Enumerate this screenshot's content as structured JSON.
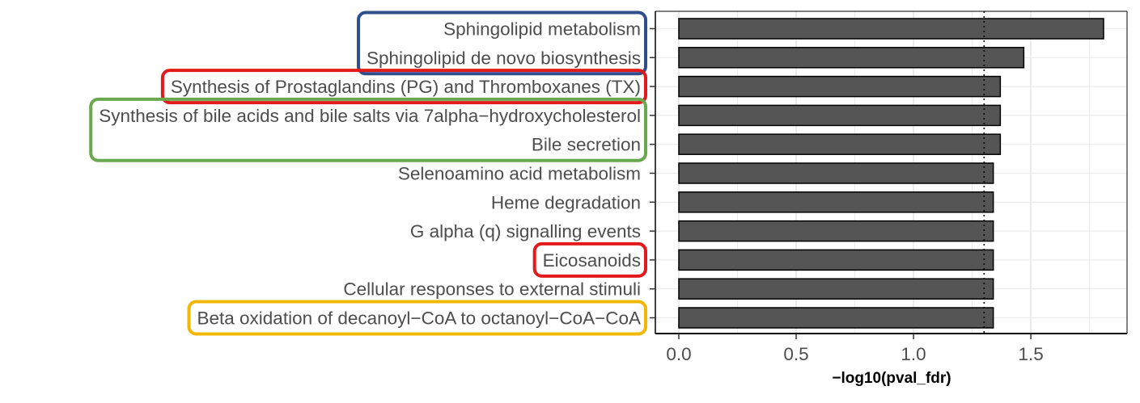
{
  "chart_data": {
    "type": "bar",
    "orientation": "horizontal",
    "categories": [
      "Sphingolipid metabolism",
      "Sphingolipid de novo biosynthesis",
      "Synthesis of Prostaglandins (PG) and Thromboxanes (TX)",
      "Synthesis of bile acids and bile salts via 7alpha−hydroxycholesterol",
      "Bile secretion",
      "Selenoamino acid metabolism",
      "Heme degradation",
      "G alpha (q) signalling events",
      "Eicosanoids",
      "Cellular responses to external stimuli",
      "Beta oxidation of decanoyl−CoA to octanoyl−CoA−CoA"
    ],
    "values": [
      1.81,
      1.47,
      1.37,
      1.37,
      1.37,
      1.34,
      1.34,
      1.34,
      1.34,
      1.34,
      1.34
    ],
    "xlabel": "−log10(pval_fdr)",
    "ylabel": "",
    "xlim": [
      -0.1,
      1.91
    ],
    "xticks": [
      0.0,
      0.5,
      1.0,
      1.5
    ],
    "xtick_labels": [
      "0.0",
      "0.5",
      "1.0",
      "1.5"
    ],
    "reference_line": {
      "value": 1.301,
      "style": "dotted",
      "color": "#000000"
    },
    "bar_color": "#555555",
    "bar_outline": "#000000",
    "grid": true,
    "grid_color": "#ebebeb",
    "highlight_boxes": [
      {
        "categories": [
          0,
          1
        ],
        "color": "#2e4f8c"
      },
      {
        "categories": [
          2
        ],
        "color": "#e31a1c"
      },
      {
        "categories": [
          3,
          4
        ],
        "color": "#6aa84f"
      },
      {
        "categories": [
          8
        ],
        "color": "#e31a1c"
      },
      {
        "categories": [
          10
        ],
        "color": "#f2b705"
      }
    ]
  }
}
